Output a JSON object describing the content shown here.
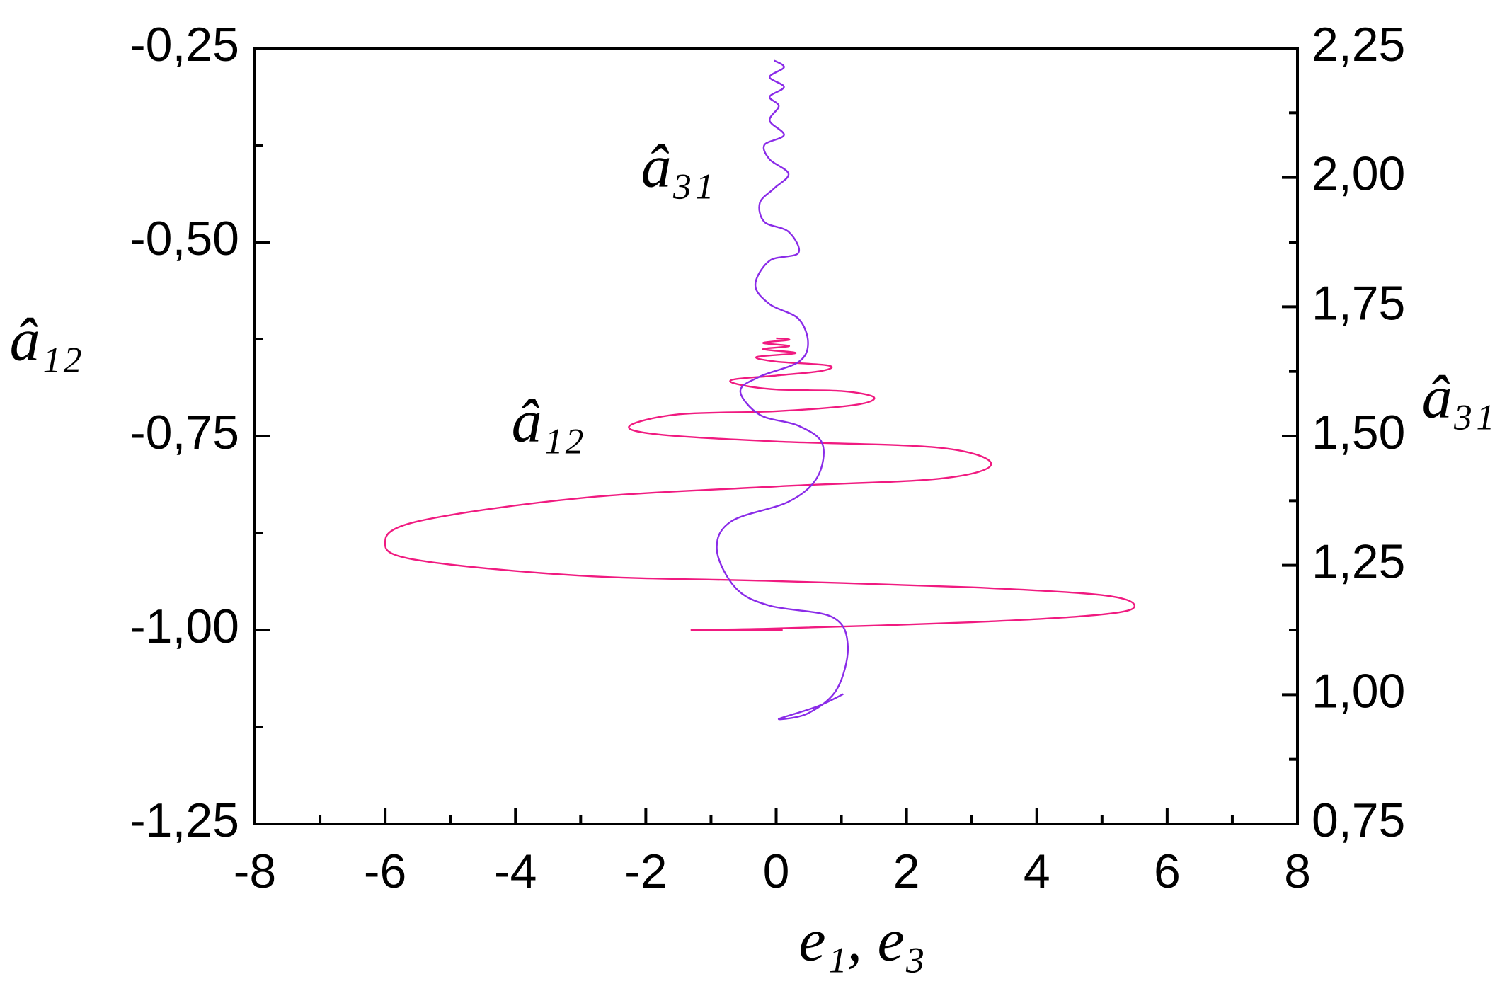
{
  "chart_data": {
    "type": "line",
    "xlabel": "e₁, e₃",
    "ylabel": "â₁₂",
    "y2label": "â₃₁",
    "xlim": [
      -8,
      8
    ],
    "xticks": [
      -8,
      -6,
      -4,
      -2,
      0,
      2,
      4,
      6,
      8
    ],
    "ylim": [
      -1.25,
      -0.25
    ],
    "yticks": [
      {
        "value": -1.25,
        "label": "-1,25"
      },
      {
        "value": -1.0,
        "label": "-1,00"
      },
      {
        "value": -0.75,
        "label": "-0,75"
      },
      {
        "value": -0.5,
        "label": "-0,50"
      },
      {
        "value": -0.25,
        "label": "-0,25"
      }
    ],
    "y2lim": [
      0.75,
      2.25
    ],
    "y2ticks": [
      {
        "value": 0.75,
        "label": "0,75"
      },
      {
        "value": 1.0,
        "label": "1,00"
      },
      {
        "value": 1.25,
        "label": "1,25"
      },
      {
        "value": 1.5,
        "label": "1,50"
      },
      {
        "value": 1.75,
        "label": "1,75"
      },
      {
        "value": 2.0,
        "label": "2,00"
      },
      {
        "value": 2.25,
        "label": "2,25"
      }
    ],
    "series": [
      {
        "name": "â₁₂",
        "color": "#f01a80",
        "axis": "y",
        "x": [
          0.1,
          -1.3,
          0,
          3,
          5.0,
          5.5,
          5.0,
          3,
          0,
          -3,
          -5.5,
          -6,
          -5.5,
          -3,
          0,
          2.5,
          3.3,
          2.5,
          0,
          -1.8,
          -2.25,
          -1.5,
          0,
          1.2,
          1.5,
          1,
          0,
          -0.6,
          -0.65,
          0,
          0.7,
          0.8,
          0,
          -0.3,
          0.3,
          -0.2,
          0.2,
          -0.2,
          0.2,
          0
        ],
        "values": [
          -1.0,
          -1.0,
          -0.998,
          -0.99,
          -0.98,
          -0.969,
          -0.955,
          -0.945,
          -0.937,
          -0.93,
          -0.91,
          -0.888,
          -0.86,
          -0.83,
          -0.815,
          -0.805,
          -0.786,
          -0.765,
          -0.757,
          -0.748,
          -0.737,
          -0.722,
          -0.718,
          -0.71,
          -0.7,
          -0.692,
          -0.69,
          -0.683,
          -0.677,
          -0.672,
          -0.666,
          -0.659,
          -0.654,
          -0.648,
          -0.643,
          -0.638,
          -0.634,
          -0.63,
          -0.626,
          -0.624
        ]
      },
      {
        "name": "â₃₁",
        "color": "#8a2be8",
        "axis": "y2",
        "x": [
          1.03,
          0.63,
          0.04,
          0.49,
          0.93,
          1.1,
          0.86,
          -0.1,
          -0.62,
          -0.91,
          -0.69,
          0.19,
          0.63,
          0.71,
          0.34,
          -0.25,
          -0.55,
          -0.25,
          0.34,
          0.49,
          0.34,
          -0.1,
          -0.32,
          -0.1,
          0.34,
          0.19,
          -0.18,
          -0.25,
          -0.03,
          0.19,
          -0.1,
          -0.18,
          0.12,
          -0.1,
          0.04,
          -0.1,
          0.12,
          -0.1,
          0.12,
          -0.03
        ],
        "values": [
          1.001,
          0.977,
          0.953,
          0.964,
          1.01,
          1.094,
          1.15,
          1.172,
          1.206,
          1.28,
          1.335,
          1.373,
          1.42,
          1.485,
          1.52,
          1.541,
          1.587,
          1.615,
          1.643,
          1.68,
          1.727,
          1.755,
          1.792,
          1.839,
          1.854,
          1.895,
          1.914,
          1.951,
          1.979,
          2.007,
          2.035,
          2.063,
          2.082,
          2.11,
          2.138,
          2.156,
          2.175,
          2.194,
          2.213,
          2.226
        ]
      }
    ]
  }
}
